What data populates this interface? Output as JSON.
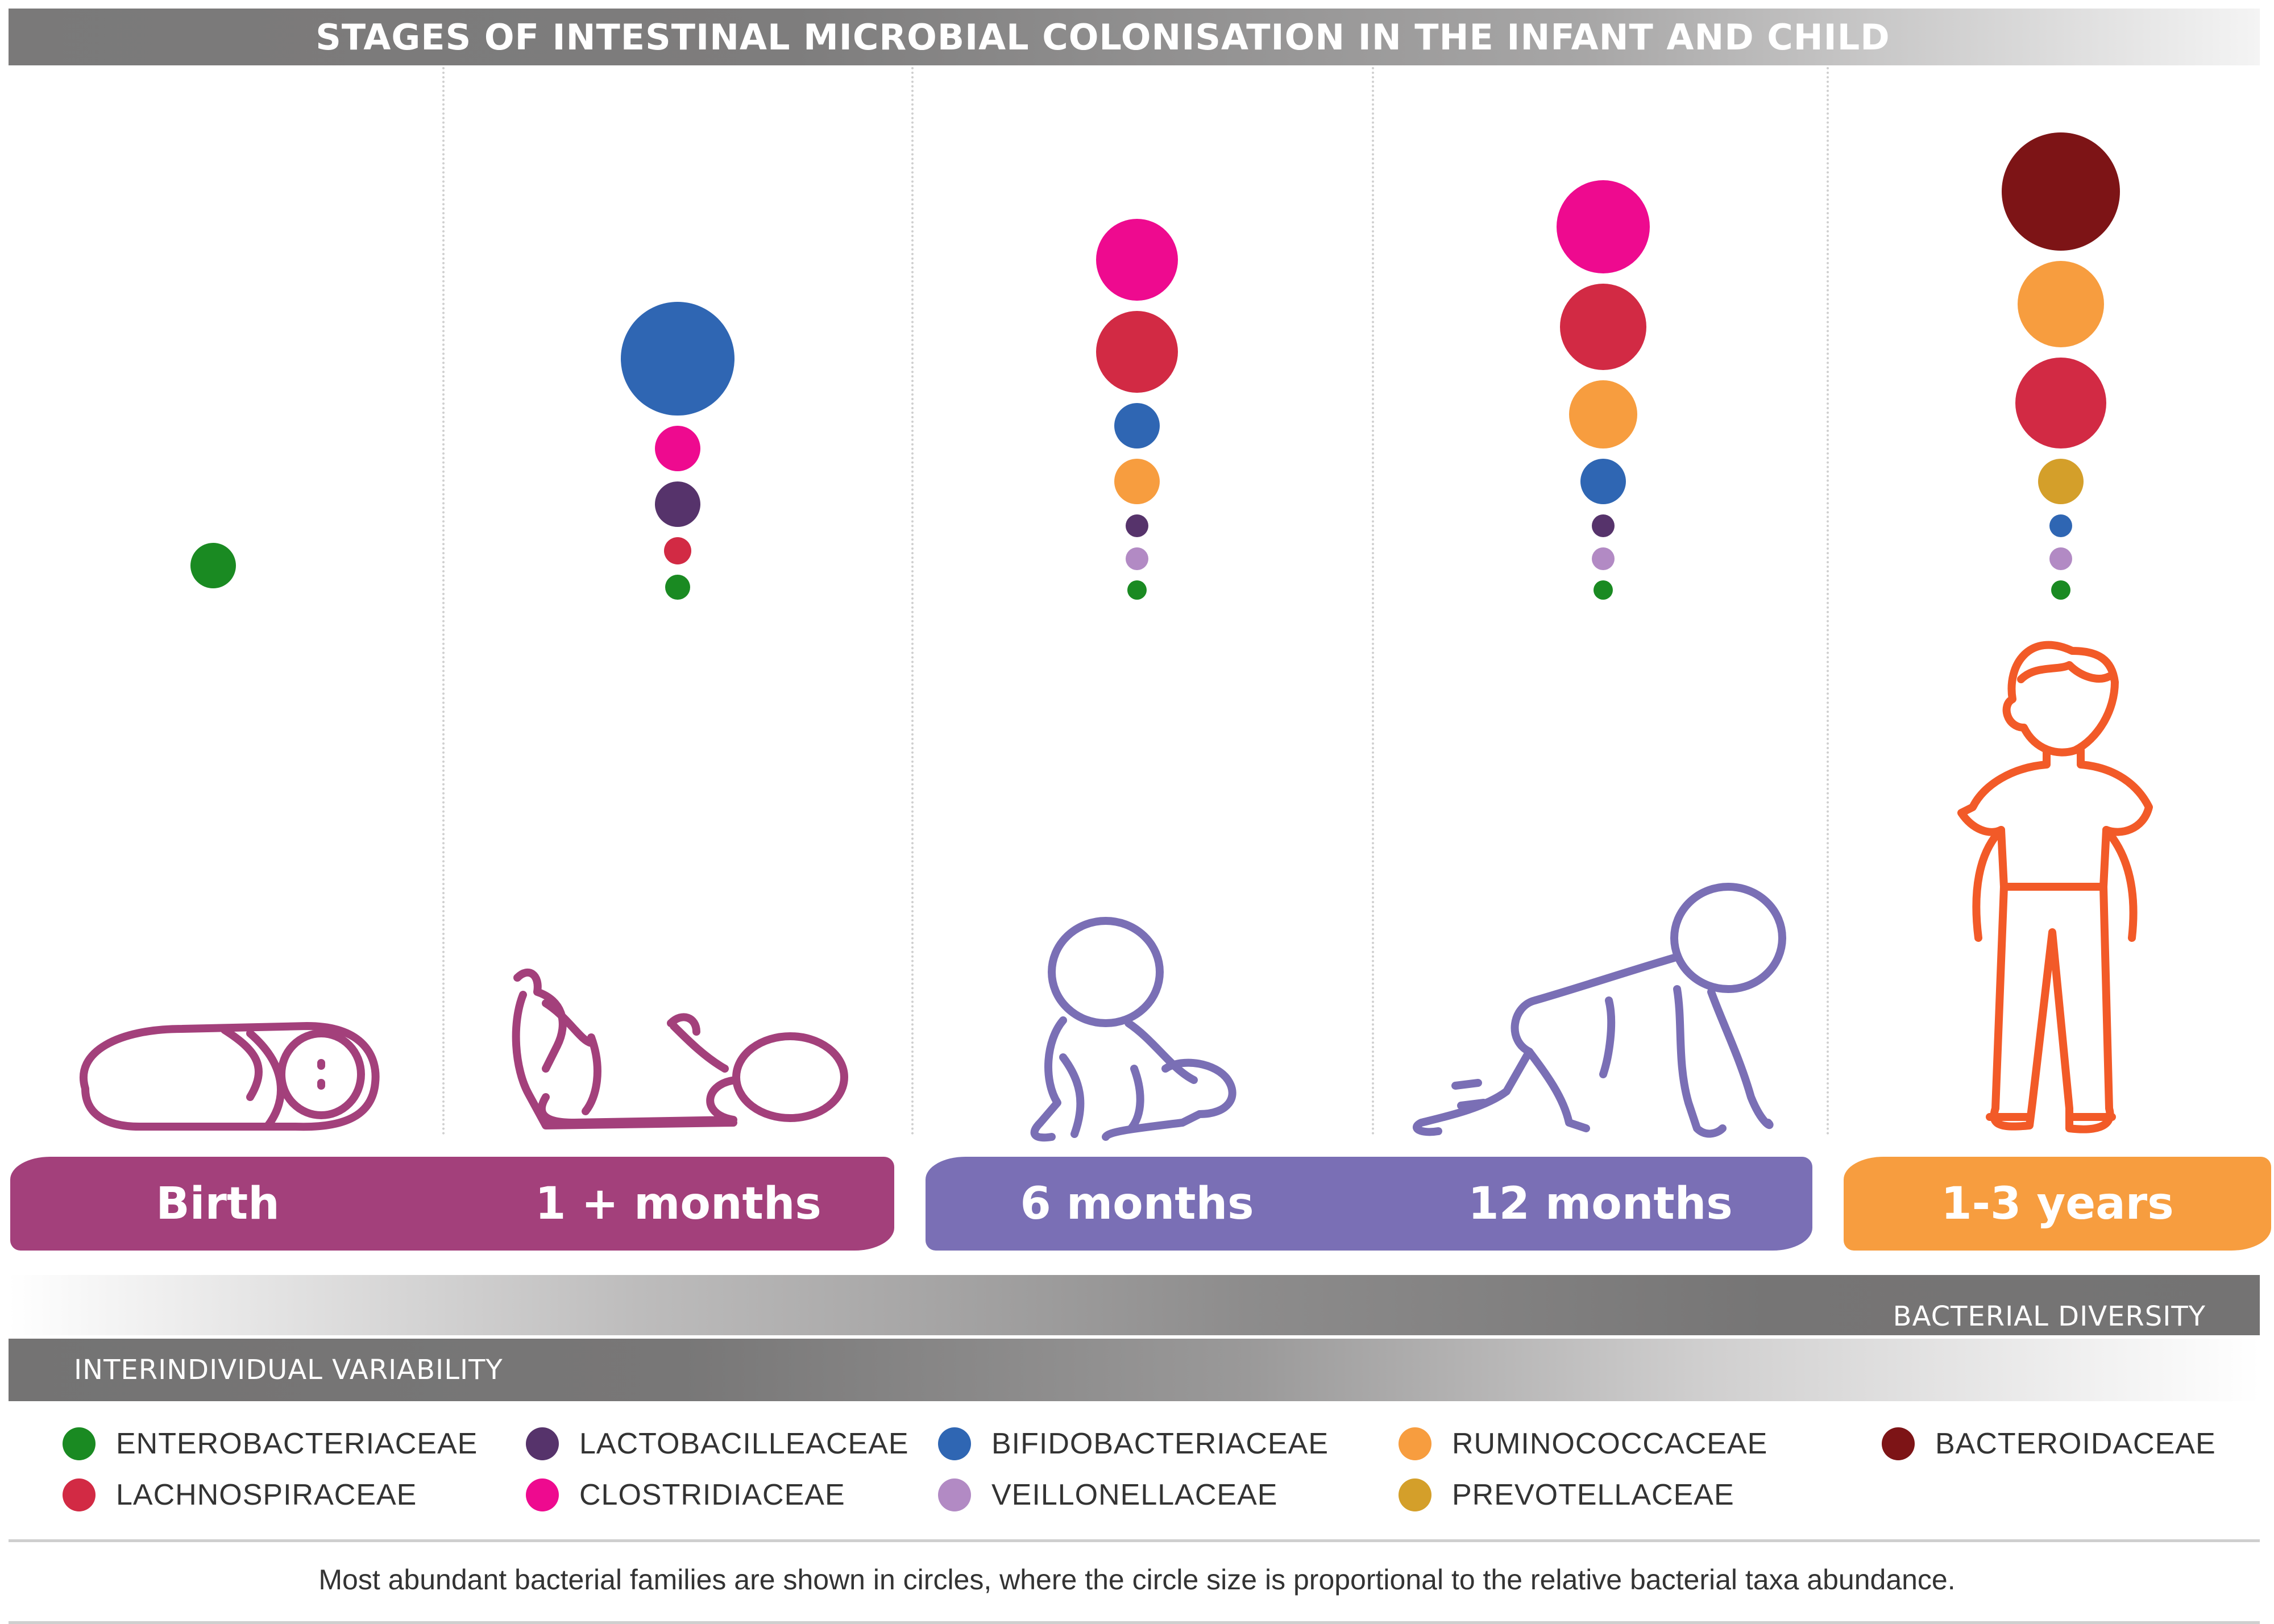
{
  "title": "STAGES OF INTESTINAL MICROBIAL COLONISATION IN THE INFANT AND CHILD",
  "colors": {
    "enterobacteriaceae": "#1a8a22",
    "lachnospiraceae": "#d22a44",
    "lactobacilleaceae": "#56336b",
    "clostridiaceae": "#ee0a8f",
    "bifidobacteriaceae": "#2f66b3",
    "veillonellaceae": "#b28ac4",
    "ruminococcaceae": "#f79d3f",
    "prevotellaceae": "#d49f2a",
    "bacteroidaceae": "#7d1416",
    "pill_magenta": "#a3407b",
    "pill_purple": "#7a6fb5",
    "pill_orange": "#f79d3f",
    "figure_magenta": "#a3407b",
    "figure_purple": "#7a6fb5",
    "figure_orange": "#f25a28"
  },
  "stages": [
    {
      "label": "Birth",
      "figure": "swaddled-baby-icon",
      "circles": [
        {
          "family": "enterobacteriaceae",
          "size": 0.4
        }
      ]
    },
    {
      "label": "1 + months",
      "figure": "lying-baby-icon",
      "circles": [
        {
          "family": "bifidobacteriaceae",
          "size": 1.0
        },
        {
          "family": "clostridiaceae",
          "size": 0.4
        },
        {
          "family": "lactobacilleaceae",
          "size": 0.4
        },
        {
          "family": "lachnospiraceae",
          "size": 0.24
        },
        {
          "family": "enterobacteriaceae",
          "size": 0.22
        }
      ]
    },
    {
      "label": "6 months",
      "figure": "sitting-baby-icon",
      "circles": [
        {
          "family": "clostridiaceae",
          "size": 0.72
        },
        {
          "family": "lachnospiraceae",
          "size": 0.72
        },
        {
          "family": "bifidobacteriaceae",
          "size": 0.4
        },
        {
          "family": "ruminococcaceae",
          "size": 0.4
        },
        {
          "family": "lactobacilleaceae",
          "size": 0.2
        },
        {
          "family": "veillonellaceae",
          "size": 0.2
        },
        {
          "family": "enterobacteriaceae",
          "size": 0.17
        }
      ]
    },
    {
      "label": "12 months",
      "figure": "crawling-baby-icon",
      "circles": [
        {
          "family": "clostridiaceae",
          "size": 0.82
        },
        {
          "family": "lachnospiraceae",
          "size": 0.76
        },
        {
          "family": "ruminococcaceae",
          "size": 0.6
        },
        {
          "family": "bifidobacteriaceae",
          "size": 0.4
        },
        {
          "family": "lactobacilleaceae",
          "size": 0.2
        },
        {
          "family": "veillonellaceae",
          "size": 0.2
        },
        {
          "family": "enterobacteriaceae",
          "size": 0.17
        }
      ]
    },
    {
      "label": "1-3 years",
      "figure": "standing-child-icon",
      "circles": [
        {
          "family": "bacteroidaceae",
          "size": 1.04
        },
        {
          "family": "ruminococcaceae",
          "size": 0.76
        },
        {
          "family": "lachnospiraceae",
          "size": 0.8
        },
        {
          "family": "prevotellaceae",
          "size": 0.4
        },
        {
          "family": "bifidobacteriaceae",
          "size": 0.2
        },
        {
          "family": "veillonellaceae",
          "size": 0.2
        },
        {
          "family": "enterobacteriaceae",
          "size": 0.17
        }
      ]
    }
  ],
  "bars": {
    "diversity": "BACTERIAL DIVERSITY",
    "variability": "INTERINDIVIDUAL VARIABILITY"
  },
  "legend": [
    {
      "key": "enterobacteriaceae",
      "label": "ENTEROBACTERIACEAE"
    },
    {
      "key": "lactobacilleaceae",
      "label": "LACTOBACILLEACEAE"
    },
    {
      "key": "bifidobacteriaceae",
      "label": "BIFIDOBACTERIACEAE"
    },
    {
      "key": "ruminococcaceae",
      "label": "RUMINOCOCCACEAE"
    },
    {
      "key": "bacteroidaceae",
      "label": "BACTEROIDACEAE"
    },
    {
      "key": "lachnospiraceae",
      "label": "LACHNOSPIRACEAE"
    },
    {
      "key": "clostridiaceae",
      "label": "CLOSTRIDIACEAE"
    },
    {
      "key": "veillonellaceae",
      "label": "VEILLONELLACEAE"
    },
    {
      "key": "prevotellaceae",
      "label": "PREVOTELLACEAE"
    }
  ],
  "footnote": "Most abundant bacterial families are shown in circles, where the circle size is proportional to the relative bacterial taxa abundance."
}
